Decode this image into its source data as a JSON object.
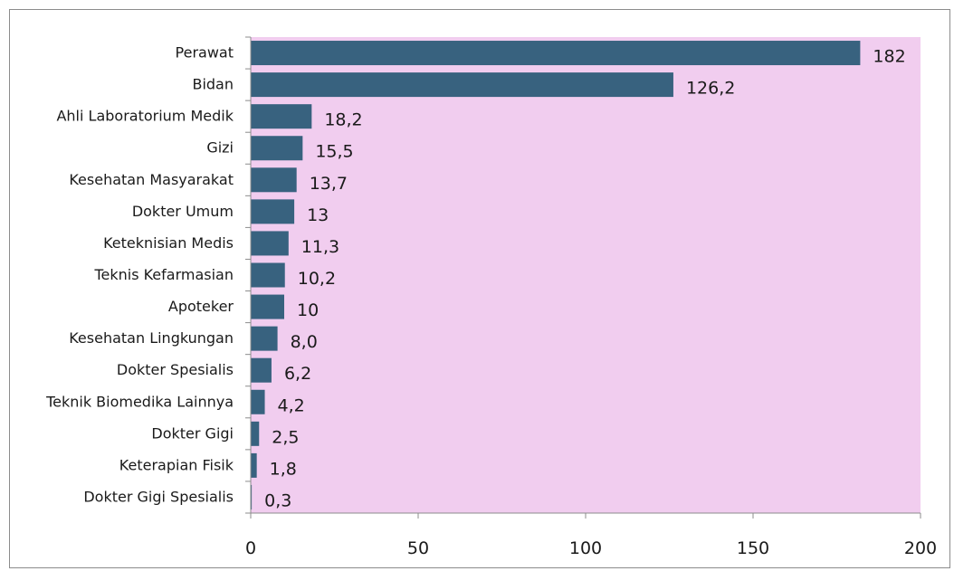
{
  "chart_data": {
    "type": "bar",
    "orientation": "horizontal",
    "title": "",
    "xlabel": "",
    "ylabel": "",
    "categories": [
      "Perawat",
      "Bidan",
      "Ahli Laboratorium Medik",
      "Gizi",
      "Kesehatan Masyarakat",
      "Dokter Umum",
      "Keteknisian Medis",
      "Teknis Kefarmasian",
      "Apoteker",
      "Kesehatan Lingkungan",
      "Dokter Spesialis",
      "Teknik Biomedika Lainnya",
      "Dokter Gigi",
      "Keterapian Fisik",
      "Dokter Gigi Spesialis"
    ],
    "values": [
      182,
      126.2,
      18.2,
      15.5,
      13.7,
      13,
      11.3,
      10.2,
      10,
      8.0,
      6.2,
      4.2,
      2.5,
      1.8,
      0.3
    ],
    "value_labels": [
      "182",
      "126,2",
      "18,2",
      "15,5",
      "13,7",
      "13",
      "11,3",
      "10,2",
      "10",
      "8,0",
      "6,2",
      "4,2",
      "2,5",
      "1,8",
      "0,3"
    ],
    "xlim": [
      0,
      200
    ],
    "x_ticks": [
      0,
      50,
      100,
      150,
      200
    ],
    "x_tick_labels": [
      "0",
      "50",
      "100",
      "150",
      "200"
    ],
    "grid": false,
    "legend": "none",
    "colors": {
      "bar": "#38627f",
      "plot_background": "#f1cdef",
      "axis": "#8c8c8c"
    }
  }
}
